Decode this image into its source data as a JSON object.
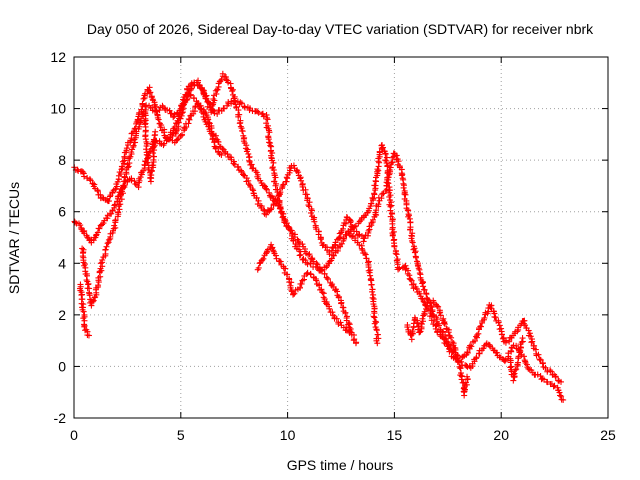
{
  "chart_data": {
    "type": "scatter",
    "title": "Day 050 of 2026, Sidereal Day-to-day VTEC variation (SDTVAR) for receiver nbrk",
    "xlabel": "GPS time / hours",
    "ylabel": "SDTVAR / TECUs",
    "xlim": [
      0,
      25
    ],
    "ylim": [
      -2,
      12
    ],
    "xticks": [
      0,
      5,
      10,
      15,
      20,
      25
    ],
    "yticks": [
      -2,
      0,
      2,
      4,
      6,
      8,
      10,
      12
    ],
    "xtick_labels": [
      "0",
      "5",
      "10",
      "15",
      "20",
      "25"
    ],
    "ytick_labels": [
      "-2",
      "0",
      "2",
      "4",
      "6",
      "8",
      "10",
      "12"
    ],
    "grid": true,
    "marker": "+",
    "color": "#ff0000",
    "series": [
      {
        "name": "satellite tracks",
        "tracks": [
          [
            [
              0.0,
              7.7
            ],
            [
              0.3,
              7.6
            ],
            [
              0.5,
              7.4
            ],
            [
              0.8,
              7.2
            ],
            [
              1.0,
              6.9
            ],
            [
              1.3,
              6.5
            ],
            [
              1.6,
              6.4
            ],
            [
              2.0,
              7.0
            ],
            [
              2.5,
              8.5
            ],
            [
              3.0,
              9.6
            ],
            [
              3.3,
              10.4
            ],
            [
              3.5,
              10.8
            ],
            [
              3.7,
              10.4
            ],
            [
              4.0,
              9.4
            ],
            [
              4.4,
              8.8
            ],
            [
              4.8,
              9.1
            ],
            [
              5.2,
              10.3
            ],
            [
              5.6,
              11.0
            ],
            [
              6.0,
              10.8
            ],
            [
              6.4,
              9.9
            ],
            [
              6.7,
              10.8
            ],
            [
              7.0,
              11.3
            ],
            [
              7.4,
              10.8
            ],
            [
              7.8,
              9.4
            ],
            [
              8.2,
              8.0
            ],
            [
              8.7,
              7.2
            ],
            [
              9.2,
              6.6
            ],
            [
              9.6,
              6.2
            ],
            [
              10.0,
              5.4
            ],
            [
              10.5,
              4.9
            ],
            [
              11.0,
              4.3
            ],
            [
              11.5,
              3.8
            ],
            [
              12.0,
              3.3
            ],
            [
              12.5,
              2.5
            ],
            [
              12.8,
              1.8
            ],
            [
              13.0,
              1.3
            ],
            [
              13.2,
              0.9
            ]
          ],
          [
            [
              0.0,
              5.6
            ],
            [
              0.2,
              5.5
            ],
            [
              0.4,
              5.3
            ],
            [
              0.6,
              5.0
            ],
            [
              0.8,
              4.8
            ],
            [
              1.0,
              5.1
            ],
            [
              1.4,
              5.6
            ],
            [
              1.8,
              6.0
            ],
            [
              2.2,
              6.8
            ],
            [
              2.6,
              7.3
            ],
            [
              3.0,
              7.0
            ],
            [
              3.4,
              8.0
            ],
            [
              3.8,
              8.8
            ],
            [
              4.2,
              8.6
            ],
            [
              4.6,
              9.1
            ],
            [
              5.0,
              9.8
            ],
            [
              5.4,
              10.6
            ],
            [
              5.8,
              10.2
            ],
            [
              6.2,
              9.4
            ],
            [
              6.6,
              8.9
            ],
            [
              7.0,
              8.4
            ],
            [
              7.4,
              8.0
            ],
            [
              7.8,
              7.6
            ],
            [
              8.2,
              7.1
            ],
            [
              8.6,
              6.4
            ],
            [
              9.0,
              5.9
            ],
            [
              9.4,
              6.3
            ],
            [
              9.8,
              7.0
            ],
            [
              10.2,
              7.8
            ],
            [
              10.5,
              7.5
            ],
            [
              10.8,
              6.8
            ],
            [
              11.2,
              5.8
            ],
            [
              11.6,
              4.8
            ],
            [
              12.0,
              4.4
            ],
            [
              12.4,
              5.0
            ],
            [
              12.8,
              5.8
            ],
            [
              13.2,
              5.2
            ],
            [
              13.6,
              4.9
            ],
            [
              14.0,
              5.6
            ],
            [
              14.3,
              6.5
            ],
            [
              14.6,
              6.9
            ],
            [
              15.0,
              8.3
            ],
            [
              15.3,
              7.6
            ],
            [
              15.6,
              6.1
            ],
            [
              16.0,
              4.2
            ],
            [
              16.4,
              3.0
            ],
            [
              16.8,
              2.1
            ],
            [
              17.2,
              1.4
            ],
            [
              17.6,
              0.8
            ],
            [
              18.0,
              0.2
            ],
            [
              18.4,
              0.5
            ],
            [
              18.8,
              1.1
            ],
            [
              19.2,
              1.9
            ],
            [
              19.5,
              2.4
            ],
            [
              19.8,
              1.8
            ],
            [
              20.2,
              0.9
            ],
            [
              20.6,
              1.2
            ],
            [
              21.0,
              1.8
            ],
            [
              21.3,
              1.3
            ],
            [
              21.6,
              0.6
            ],
            [
              22.0,
              0.0
            ],
            [
              22.4,
              -0.3
            ],
            [
              22.8,
              -0.6
            ]
          ],
          [
            [
              0.4,
              4.6
            ],
            [
              0.6,
              3.4
            ],
            [
              0.8,
              2.4
            ],
            [
              1.0,
              2.7
            ],
            [
              1.3,
              4.0
            ],
            [
              1.6,
              4.8
            ],
            [
              1.9,
              5.4
            ],
            [
              2.2,
              6.5
            ],
            [
              2.6,
              8.1
            ],
            [
              3.0,
              9.2
            ],
            [
              3.4,
              10.1
            ],
            [
              3.8,
              9.9
            ],
            [
              4.2,
              10.1
            ],
            [
              4.6,
              9.7
            ],
            [
              5.0,
              10.0
            ],
            [
              5.4,
              10.9
            ],
            [
              5.8,
              11.1
            ],
            [
              6.2,
              10.4
            ],
            [
              6.6,
              9.8
            ],
            [
              7.0,
              10.0
            ],
            [
              7.4,
              10.3
            ],
            [
              7.8,
              10.2
            ],
            [
              8.2,
              10.0
            ],
            [
              8.6,
              9.9
            ],
            [
              9.0,
              9.7
            ],
            [
              9.2,
              8.5
            ],
            [
              9.4,
              7.2
            ],
            [
              9.6,
              6.4
            ],
            [
              9.8,
              5.8
            ],
            [
              10.1,
              5.3
            ],
            [
              10.4,
              4.6
            ],
            [
              10.8,
              4.1
            ],
            [
              11.2,
              3.9
            ],
            [
              11.6,
              3.7
            ],
            [
              12.0,
              4.1
            ],
            [
              12.4,
              4.6
            ],
            [
              12.8,
              5.2
            ],
            [
              13.2,
              5.5
            ],
            [
              13.6,
              5.8
            ],
            [
              14.0,
              6.5
            ],
            [
              14.2,
              7.6
            ],
            [
              14.4,
              8.6
            ],
            [
              14.6,
              8.2
            ],
            [
              14.8,
              6.4
            ],
            [
              15.0,
              4.7
            ],
            [
              15.2,
              3.8
            ],
            [
              15.5,
              3.9
            ],
            [
              15.8,
              3.2
            ],
            [
              16.2,
              2.8
            ],
            [
              16.6,
              2.2
            ],
            [
              17.0,
              1.4
            ],
            [
              17.4,
              0.9
            ],
            [
              17.8,
              0.3
            ],
            [
              18.2,
              0.1
            ],
            [
              18.6,
              0.0
            ],
            [
              19.0,
              0.6
            ],
            [
              19.4,
              0.9
            ],
            [
              19.8,
              0.5
            ],
            [
              20.2,
              0.2
            ],
            [
              20.6,
              0.8
            ],
            [
              21.0,
              0.4
            ],
            [
              21.4,
              -0.2
            ],
            [
              21.8,
              -0.4
            ],
            [
              22.2,
              -0.6
            ],
            [
              22.6,
              -0.8
            ],
            [
              22.9,
              -1.3
            ]
          ],
          [
            [
              0.3,
              3.2
            ],
            [
              0.4,
              2.4
            ],
            [
              0.5,
              1.5
            ],
            [
              0.6,
              1.3
            ],
            [
              0.7,
              1.2
            ]
          ],
          [
            [
              8.6,
              3.8
            ],
            [
              8.9,
              4.3
            ],
            [
              9.2,
              4.7
            ],
            [
              9.5,
              4.2
            ],
            [
              9.8,
              3.9
            ],
            [
              10.1,
              3.3
            ],
            [
              10.3,
              2.8
            ],
            [
              10.6,
              3.1
            ],
            [
              10.9,
              3.6
            ],
            [
              11.2,
              3.5
            ],
            [
              11.5,
              3.1
            ],
            [
              11.8,
              2.5
            ],
            [
              12.1,
              2.0
            ],
            [
              12.4,
              1.7
            ],
            [
              12.7,
              1.5
            ],
            [
              12.9,
              1.3
            ]
          ],
          [
            [
              12.9,
              5.2
            ],
            [
              13.2,
              4.9
            ],
            [
              13.5,
              4.6
            ],
            [
              13.8,
              4.0
            ],
            [
              14.0,
              2.8
            ],
            [
              14.1,
              1.7
            ],
            [
              14.2,
              1.2
            ],
            [
              14.2,
              0.9
            ]
          ],
          [
            [
              15.6,
              1.6
            ],
            [
              15.8,
              1.1
            ],
            [
              16.0,
              1.9
            ],
            [
              16.2,
              1.3
            ],
            [
              16.5,
              2.4
            ],
            [
              16.8,
              2.5
            ],
            [
              17.1,
              2.2
            ],
            [
              17.4,
              1.6
            ],
            [
              17.7,
              1.0
            ],
            [
              18.0,
              0.2
            ],
            [
              18.2,
              -0.6
            ],
            [
              18.3,
              -1.1
            ],
            [
              18.4,
              -0.4
            ]
          ],
          [
            [
              3.3,
              9.9
            ],
            [
              3.4,
              8.6
            ],
            [
              3.5,
              7.6
            ],
            [
              3.6,
              7.2
            ],
            [
              3.7,
              8.0
            ],
            [
              3.8,
              9.1
            ]
          ],
          [
            [
              4.6,
              8.7
            ],
            [
              5.0,
              8.9
            ],
            [
              5.4,
              9.6
            ],
            [
              5.8,
              10.2
            ],
            [
              6.1,
              9.9
            ],
            [
              6.4,
              9.4
            ],
            [
              6.6,
              8.5
            ],
            [
              6.9,
              8.2
            ]
          ],
          [
            [
              20.4,
              0.3
            ],
            [
              20.5,
              -0.2
            ],
            [
              20.6,
              -0.5
            ],
            [
              20.8,
              0.2
            ],
            [
              21.0,
              1.1
            ]
          ]
        ]
      }
    ]
  }
}
